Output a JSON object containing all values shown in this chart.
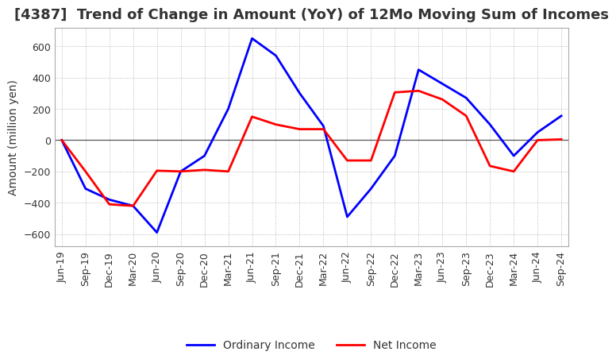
{
  "title": "[4387]  Trend of Change in Amount (YoY) of 12Mo Moving Sum of Incomes",
  "ylabel": "Amount (million yen)",
  "ylim": [
    -680,
    720
  ],
  "yticks": [
    -600,
    -400,
    -200,
    0,
    200,
    400,
    600
  ],
  "legend_labels": [
    "Ordinary Income",
    "Net Income"
  ],
  "line_colors": [
    "#0000ff",
    "#ff0000"
  ],
  "x_labels": [
    "Jun-19",
    "Sep-19",
    "Dec-19",
    "Mar-20",
    "Jun-20",
    "Sep-20",
    "Dec-20",
    "Mar-21",
    "Jun-21",
    "Sep-21",
    "Dec-21",
    "Mar-22",
    "Jun-22",
    "Sep-22",
    "Dec-22",
    "Mar-23",
    "Jun-23",
    "Sep-23",
    "Dec-23",
    "Mar-24",
    "Jun-24",
    "Sep-24"
  ],
  "ordinary_income": [
    0,
    -310,
    -380,
    -420,
    -590,
    -200,
    -100,
    200,
    650,
    540,
    300,
    90,
    -490,
    -310,
    -100,
    450,
    360,
    270,
    100,
    -100,
    50,
    155
  ],
  "net_income": [
    0,
    -200,
    -410,
    -420,
    -195,
    -200,
    -190,
    -200,
    150,
    100,
    70,
    70,
    -130,
    -130,
    305,
    315,
    260,
    155,
    -165,
    -200,
    0,
    5
  ],
  "background_color": "#ffffff",
  "grid_color": "#aaaaaa",
  "title_fontsize": 13,
  "axis_fontsize": 10,
  "tick_fontsize": 9
}
